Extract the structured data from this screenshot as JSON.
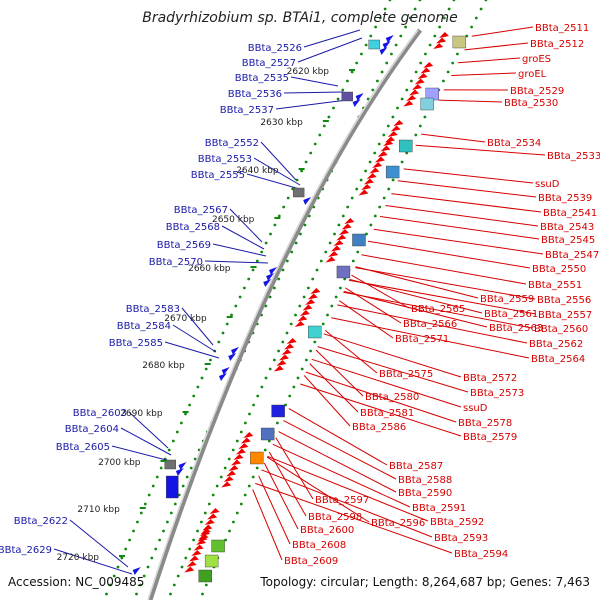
{
  "title": "Bradyrhizobium sp. BTAi1, complete genome",
  "accession": "Accession: NC_009485",
  "topology": "Topology: circular; Length: 8,264,687 bp; Genes: 7,463",
  "colors": {
    "left_label": "#1a1aa8",
    "right_label": "#d60000",
    "left_gene": "#1414e6",
    "right_gene": "#ee0000",
    "dots": "#118811",
    "backbone": "#8a8a8a"
  },
  "ticks": [
    "2620 kbp",
    "2630 kbp",
    "2640 kbp",
    "2650 kbp",
    "2660 kbp",
    "2670 kbp",
    "2680 kbp",
    "2690 kbp",
    "2700 kbp",
    "2710 kbp",
    "2720 kbp"
  ],
  "left_labels": [
    "BBta_2526",
    "BBta_2527",
    "BBta_2535",
    "BBta_2536",
    "BBta_2537",
    "BBta_2552",
    "BBta_2553",
    "BBta_2555",
    "BBta_2567",
    "BBta_2568",
    "BBta_2569",
    "BBta_2570",
    "BBta_2583",
    "BBta_2584",
    "BBta_2585",
    "BBta_2603",
    "BBta_2604",
    "BBta_2605",
    "BBta_2622",
    "BBta_2629"
  ],
  "right_labels": [
    "BBta_2511",
    "BBta_2512",
    "groES",
    "groEL",
    "BBta_2529",
    "BBta_2530",
    "BBta_2534",
    "BBta_2533",
    "ssuD",
    "BBta_2539",
    "BBta_2541",
    "BBta_2543",
    "BBta_2545",
    "BBta_2547",
    "BBta_2550",
    "BBta_2551",
    "BBta_2559",
    "BBta_2556",
    "BBta_2565",
    "BBta_2561",
    "BBta_2557",
    "BBta_2566",
    "BBta_2563",
    "BBta_2560",
    "BBta_2571",
    "BBta_2562",
    "BBta_2564",
    "BBta_2575",
    "BBta_2572",
    "BBta_2573",
    "BBta_2580",
    "ssuD",
    "BBta_2581",
    "BBta_2578",
    "BBta_2586",
    "BBta_2579",
    "BBta_2587",
    "BBta_2588",
    "BBta_2590",
    "BBta_2597",
    "BBta_2591",
    "BBta_2598",
    "BBta_2596",
    "BBta_2592",
    "BBta_2600",
    "BBta_2593",
    "BBta_2608",
    "BBta_2594",
    "BBta_2609"
  ]
}
